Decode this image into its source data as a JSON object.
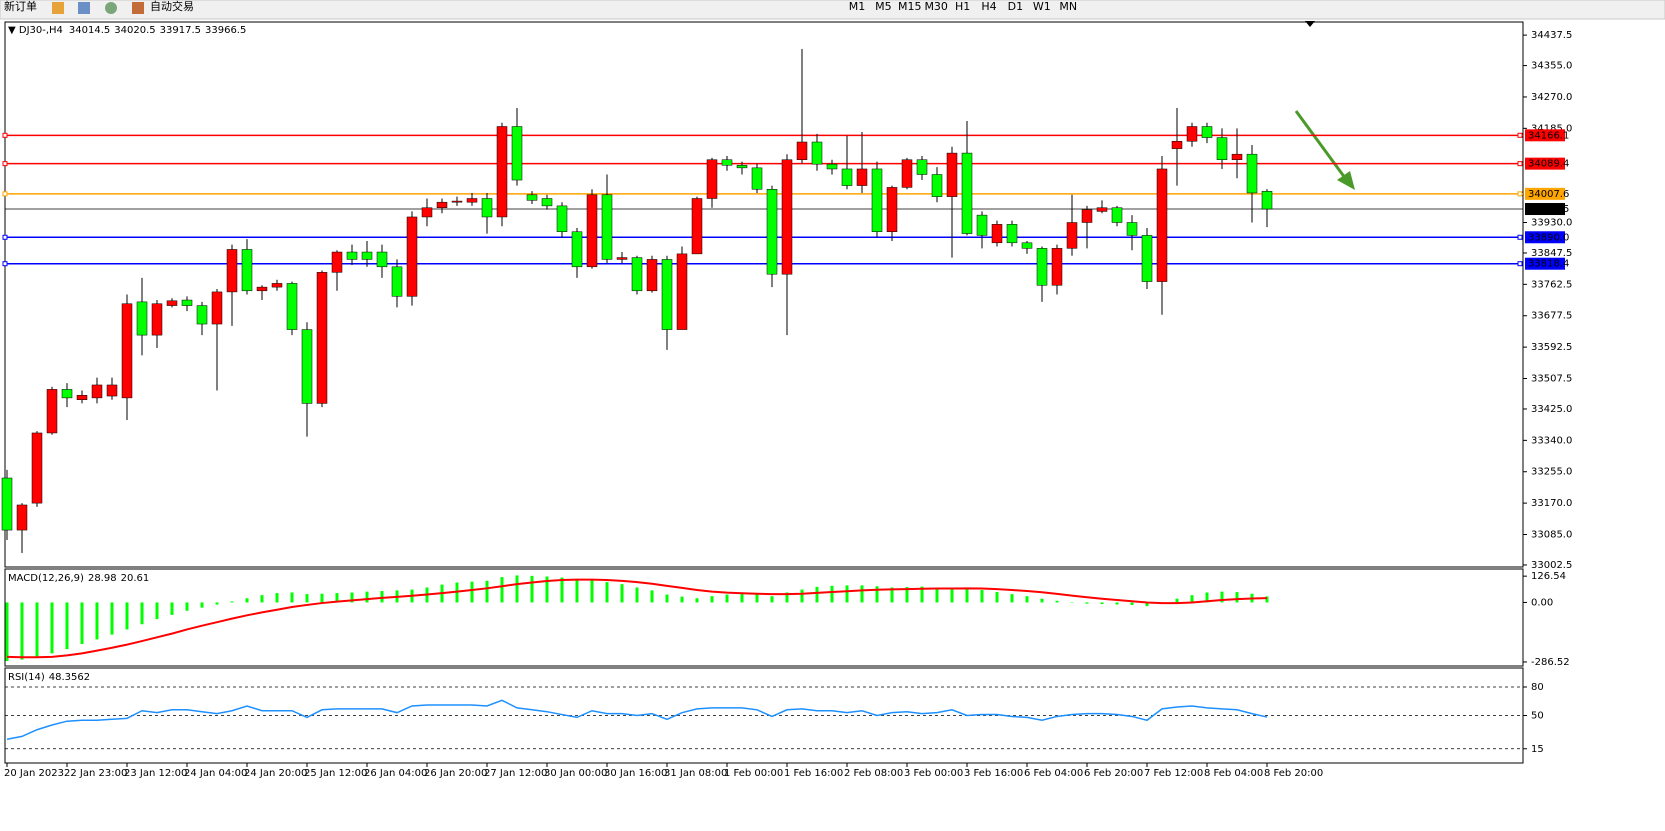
{
  "toolbar": {
    "new_order": "新订单",
    "auto_trading": "自动交易",
    "timeframes": [
      "M1",
      "M5",
      "M15",
      "M30",
      "H1",
      "H4",
      "D1",
      "W1",
      "MN"
    ]
  },
  "chart_data": [
    {
      "type": "candlestick",
      "title": "DJ30-,H4",
      "up_color": "#ff0000",
      "down_color": "#00ff00",
      "categories": [
        "20 Jan 2023",
        null,
        null,
        null,
        "22 Jan 23:00",
        null,
        null,
        null,
        "23 Jan 12:00",
        null,
        null,
        null,
        "24 Jan 04:00",
        null,
        null,
        null,
        "24 Jan 20:00",
        null,
        null,
        null,
        "25 Jan 12:00",
        null,
        null,
        null,
        "26 Jan 04:00",
        null,
        null,
        null,
        "26 Jan 20:00",
        null,
        null,
        null,
        "27 Jan 12:00",
        null,
        null,
        null,
        "30 Jan 00:00",
        null,
        null,
        null,
        "30 Jan 16:00",
        null,
        null,
        null,
        "31 Jan 08:00",
        null,
        null,
        null,
        "1 Feb 00:00",
        null,
        null,
        null,
        "1 Feb 16:00",
        null,
        null,
        null,
        "2 Feb 08:00",
        null,
        null,
        null,
        "3 Feb 00:00",
        null,
        null,
        null,
        "3 Feb 16:00",
        null,
        null,
        null,
        "6 Feb 04:00",
        null,
        null,
        null,
        "6 Feb 20:00",
        null,
        null,
        null,
        "7 Feb 12:00",
        null,
        null,
        null,
        "8 Feb 04:00",
        null,
        null,
        null,
        "8 Feb 20:00"
      ],
      "open": [
        33238,
        33097,
        33170,
        33360,
        33478,
        33450,
        33455,
        33460,
        33455,
        33715,
        33625,
        33705,
        33720,
        33705,
        33655,
        33742,
        33857,
        33745,
        33755,
        33765,
        33640,
        33440,
        33795,
        33850,
        33850,
        33850,
        33810,
        33730,
        33945,
        33970,
        33985,
        33985,
        33995,
        33945,
        34190,
        34005,
        33995,
        33975,
        33905,
        33810,
        34005,
        33830,
        33835,
        33745,
        33830,
        33640,
        33845,
        33995,
        34100,
        34085,
        34078,
        34020,
        33790,
        34100,
        34148,
        34088,
        34075,
        34030,
        34075,
        33905,
        34025,
        34100,
        34060,
        34000,
        34118,
        33950,
        33875,
        33925,
        33875,
        33860,
        33760,
        33860,
        33930,
        33960,
        33970,
        33930,
        33895,
        33770,
        34130,
        34150,
        34190,
        34160,
        34100,
        34115,
        34014.5
      ],
      "high": [
        33260,
        33170,
        33365,
        33485,
        33495,
        33475,
        33510,
        33510,
        33735,
        33780,
        33720,
        33725,
        33730,
        33715,
        33750,
        33870,
        33885,
        33760,
        33775,
        33770,
        33660,
        33800,
        33855,
        33870,
        33880,
        33870,
        33830,
        33960,
        33995,
        33995,
        34000,
        34010,
        34010,
        34200,
        34240,
        34015,
        34005,
        33985,
        33915,
        34020,
        34060,
        33850,
        33840,
        33840,
        33840,
        33865,
        34000,
        34105,
        34110,
        34095,
        34090,
        34030,
        34115,
        34400,
        34170,
        34100,
        34165,
        34175,
        34095,
        34030,
        34105,
        34110,
        34080,
        34135,
        34205,
        33960,
        33935,
        33935,
        33880,
        33865,
        33870,
        34005,
        33975,
        33990,
        33975,
        33950,
        33915,
        34110,
        34240,
        34200,
        34200,
        34185,
        34185,
        34140,
        34020.5
      ],
      "low": [
        33070,
        33035,
        33160,
        33355,
        33430,
        33440,
        33440,
        33450,
        33395,
        33570,
        33590,
        33700,
        33690,
        33625,
        33475,
        33650,
        33735,
        33720,
        33745,
        33625,
        33350,
        33430,
        33745,
        33815,
        33810,
        33780,
        33700,
        33705,
        33920,
        33955,
        33975,
        33975,
        33900,
        33920,
        34030,
        33980,
        33965,
        33890,
        33780,
        33805,
        33820,
        33820,
        33735,
        33740,
        33585,
        33640,
        33845,
        33970,
        34070,
        34060,
        34010,
        33755,
        33625,
        34090,
        34070,
        34060,
        34020,
        34010,
        33890,
        33880,
        34020,
        34045,
        33985,
        33835,
        33895,
        33860,
        33865,
        33865,
        33845,
        33715,
        33735,
        33840,
        33860,
        33955,
        33920,
        33855,
        33750,
        33680,
        34030,
        34135,
        34145,
        34075,
        34050,
        33930,
        33917.5
      ],
      "close": [
        33097,
        33165,
        33360,
        33478,
        33455,
        33462,
        33490,
        33490,
        33710,
        33625,
        33710,
        33718,
        33705,
        33655,
        33742,
        33857,
        33745,
        33755,
        33765,
        33640,
        33440,
        33795,
        33850,
        33830,
        33830,
        33810,
        33730,
        33945,
        33970,
        33985,
        33988,
        33995,
        33945,
        34190,
        34045,
        33990,
        33975,
        33905,
        33810,
        34005,
        33830,
        33835,
        33745,
        33830,
        33640,
        33845,
        33995,
        34100,
        34085,
        34078,
        34020,
        33790,
        34100,
        34148,
        34088,
        34075,
        34030,
        34075,
        33905,
        34025,
        34100,
        34060,
        34000,
        34118,
        33900,
        33895,
        33925,
        33875,
        33860,
        33760,
        33860,
        33930,
        33965,
        33970,
        33930,
        33895,
        33770,
        34075,
        34150,
        34190,
        34160,
        34100,
        34115,
        34010,
        33966.5
      ],
      "ylim": [
        32997,
        34473
      ],
      "yticks": [
        34437.5,
        {
          "value": 34355,
          "label": "34355.0"
        },
        {
          "value": 34270,
          "label": "34270.0"
        },
        {
          "value": 34185,
          "label": "34185.0"
        },
        {
          "value": 33930,
          "label": "33930.0"
        },
        33847.5,
        33762.5,
        33677.5,
        33592.5,
        33507.5,
        {
          "value": 33425,
          "label": "33425.0"
        },
        {
          "value": 33340,
          "label": "33340.0"
        },
        {
          "value": 33255,
          "label": "33255.0"
        },
        {
          "value": 33170,
          "label": "33170.0"
        },
        {
          "value": 33085,
          "label": "33085.0"
        },
        33002.5
      ],
      "hlines": [
        {
          "value": 34166.1,
          "color": "#ff0000"
        },
        {
          "value": 34089.4,
          "color": "#ff0000"
        },
        {
          "value": 34007.6,
          "color": "#ffa500"
        },
        {
          "value": 33890,
          "label": "33890.0",
          "color": "#0000ff"
        },
        {
          "value": 33818.4,
          "color": "#0000ff"
        }
      ]
    },
    {
      "type": "macd",
      "title": "MACD(12,26,9)",
      "ylim": [
        -306,
        161
      ],
      "yticks": [
        126.54,
        {
          "value": 0,
          "label": "0.00"
        },
        -286.52
      ],
      "series": [
        {
          "kind": "bar",
          "color": "#00ff00",
          "values": [
            -282,
            -275,
            -262,
            -245,
            -225,
            -200,
            -178,
            -155,
            -130,
            -105,
            -80,
            -60,
            -40,
            -25,
            -10,
            5,
            20,
            35,
            45,
            48,
            40,
            42,
            45,
            48,
            52,
            55,
            58,
            62,
            72,
            86,
            96,
            100,
            104,
            122,
            130,
            128,
            125,
            120,
            108,
            110,
            98,
            88,
            72,
            58,
            38,
            28,
            20,
            30,
            38,
            42,
            40,
            30,
            48,
            62,
            75,
            80,
            82,
            82,
            78,
            72,
            74,
            76,
            72,
            68,
            72,
            60,
            50,
            40,
            30,
            18,
            8,
            -2,
            -6,
            -8,
            -10,
            -12,
            -18,
            0,
            18,
            35,
            48,
            52,
            50,
            42,
            28.98
          ]
        },
        {
          "kind": "line",
          "color": "#ff0000",
          "values": [
            -262,
            -264,
            -264,
            -262,
            -255,
            -245,
            -232,
            -218,
            -203,
            -186,
            -168,
            -150,
            -130,
            -112,
            -95,
            -78,
            -62,
            -48,
            -35,
            -22,
            -12,
            -3,
            4,
            10,
            16,
            22,
            27,
            32,
            38,
            45,
            52,
            60,
            68,
            78,
            88,
            96,
            103,
            108,
            110,
            110,
            108,
            104,
            98,
            90,
            80,
            70,
            60,
            52,
            47,
            44,
            42,
            40,
            40,
            42,
            46,
            50,
            54,
            58,
            61,
            63,
            64,
            66,
            67,
            67,
            68,
            67,
            64,
            60,
            55,
            49,
            41,
            33,
            25,
            18,
            12,
            6,
            0,
            -3,
            -3,
            0,
            6,
            12,
            16,
            19,
            20.61
          ]
        }
      ]
    },
    {
      "type": "line",
      "title": "RSI(14)",
      "color": "#1e90ff",
      "ylim": [
        0,
        100
      ],
      "yticks": [
        80,
        50,
        15
      ],
      "values": [
        25,
        28,
        35,
        40,
        44,
        45,
        45,
        46,
        47,
        55,
        53,
        56,
        56,
        54,
        52,
        55,
        60,
        55,
        55,
        55,
        48,
        56,
        57,
        57,
        57,
        57,
        53,
        60,
        61,
        61,
        61,
        61,
        60,
        66,
        58,
        56,
        54,
        51,
        48,
        55,
        52,
        52,
        50,
        52,
        46,
        53,
        57,
        58,
        58,
        58,
        56,
        49,
        56,
        57,
        55,
        55,
        53,
        55,
        50,
        53,
        54,
        52,
        53,
        56,
        50,
        51,
        51,
        49,
        48,
        45,
        49,
        51,
        52,
        52,
        51,
        49,
        45,
        57,
        59,
        60,
        58,
        57,
        56,
        52,
        48.3562
      ]
    }
  ]
}
